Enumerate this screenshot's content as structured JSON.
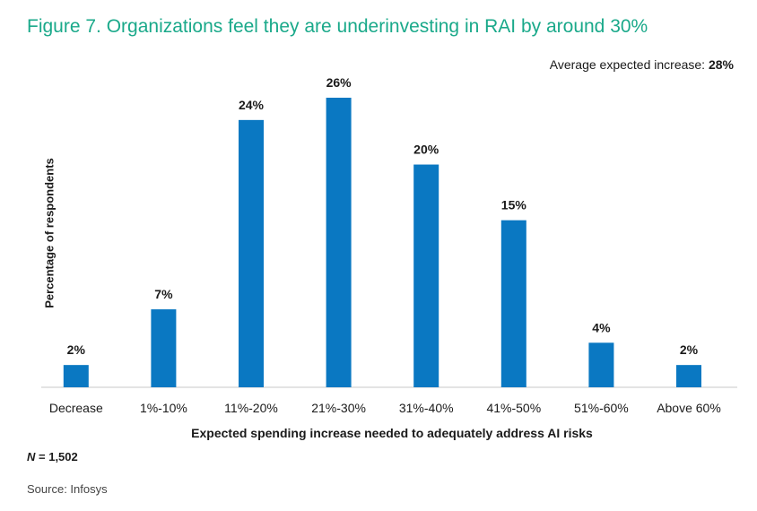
{
  "chart_data": {
    "type": "bar",
    "title": "Figure 7. Organizations feel they are underinvesting in RAI by around 30%",
    "annotation": {
      "label": "Average expected increase:",
      "value": "28%"
    },
    "xlabel": "Expected spending increase needed to adequately address AI risks",
    "ylabel": "Percentage of respondents",
    "categories": [
      "Decrease",
      "1%-10%",
      "11%-20%",
      "21%-30%",
      "31%-40%",
      "41%-50%",
      "51%-60%",
      "Above 60%"
    ],
    "values": [
      2,
      7,
      24,
      26,
      20,
      15,
      4,
      2
    ],
    "value_labels": [
      "2%",
      "7%",
      "24%",
      "26%",
      "20%",
      "15%",
      "4%",
      "2%"
    ],
    "ylim": [
      0,
      26
    ],
    "grid": false,
    "bar_color": "#0a78c2"
  },
  "footer": {
    "n_label": "N",
    "n_value": "= 1,502",
    "source": "Source: Infosys"
  }
}
